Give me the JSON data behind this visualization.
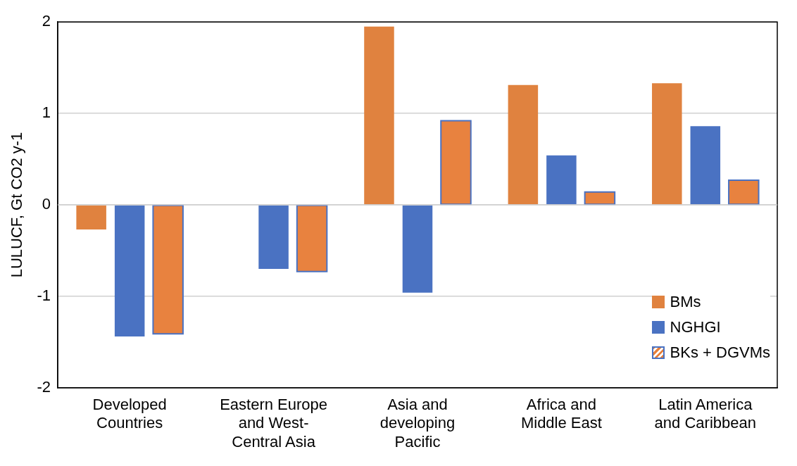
{
  "chart_data": {
    "type": "bar",
    "ylabel": "LULUCF, Gt CO2 y-1",
    "categories": [
      "Developed Countries",
      "Eastern Europe and West-Central Asia",
      "Asia and developing Pacific",
      "Africa and Middle East",
      "Latin America and Caribbean"
    ],
    "series": [
      {
        "name": "BMs",
        "color": "#e0823f",
        "values": [
          -0.27,
          null,
          1.95,
          1.31,
          1.33
        ]
      },
      {
        "name": "NGHGI",
        "color": "#4a72c2",
        "values": [
          -1.44,
          -0.7,
          -0.96,
          0.54,
          0.86
        ]
      },
      {
        "name": "BKs + DGVMs",
        "color": "#e8823f",
        "values": [
          -1.41,
          -0.73,
          0.92,
          0.14,
          0.27
        ]
      }
    ],
    "ylim": [
      -2,
      2
    ],
    "yticks": [
      -2,
      -1,
      0,
      1,
      2
    ],
    "grid": "y",
    "legend": "bottom right"
  }
}
